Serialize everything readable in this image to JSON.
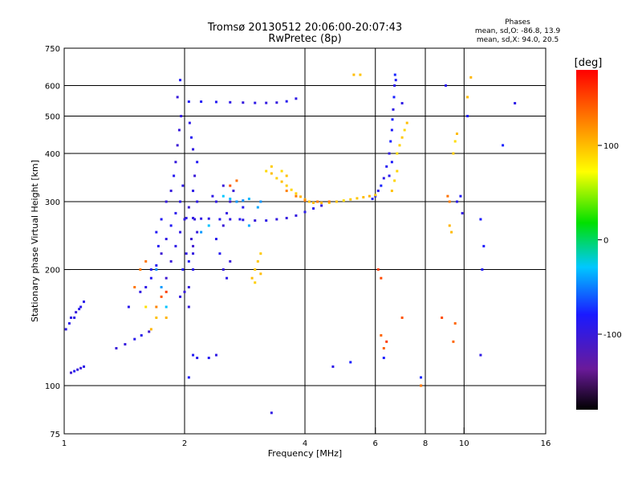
{
  "header": {
    "title_line1": "Tromsø 20130512 20:06:00-20:07:43",
    "title_line2": "RwPretec (8p)",
    "stats_title": "Phases",
    "stats_o": "mean, sd,O: -86.8, 13.9",
    "stats_x": "mean, sd,X: 94.0, 20.5"
  },
  "chart_data": {
    "type": "scatter",
    "xlabel": "Frequency [MHz]",
    "ylabel": "Stationary phase Virtual Height [km]",
    "xscale": "log",
    "yscale": "log",
    "xlim": [
      1,
      16
    ],
    "ylim": [
      75,
      750
    ],
    "x_ticks": [
      {
        "value": 1,
        "label": "1"
      },
      {
        "value": 2,
        "label": "2"
      },
      {
        "value": 4,
        "label": "4"
      },
      {
        "value": 6,
        "label": "6"
      },
      {
        "value": 8,
        "label": "8"
      },
      {
        "value": 10,
        "label": "10"
      },
      {
        "value": 16,
        "label": "16"
      }
    ],
    "x_gridlines": [
      2,
      4,
      6,
      8,
      10
    ],
    "y_ticks": [
      {
        "value": 75,
        "label": "75"
      },
      {
        "value": 100,
        "label": "100"
      },
      {
        "value": 200,
        "label": "200"
      },
      {
        "value": 300,
        "label": "300"
      },
      {
        "value": 400,
        "label": "400"
      },
      {
        "value": 500,
        "label": "500"
      },
      {
        "value": 600,
        "label": "600"
      },
      {
        "value": 750,
        "label": "750"
      }
    ],
    "y_gridlines": [
      100,
      200,
      300,
      400,
      500,
      600
    ],
    "colorbar": {
      "label": "[deg]",
      "range": [
        -180,
        180
      ],
      "ticks": [
        {
          "value": 100,
          "label": "100"
        },
        {
          "value": 0,
          "label": "0"
        },
        {
          "value": -100,
          "label": "-100"
        }
      ]
    },
    "point_groups": [
      {
        "phase": -95,
        "spread": 10,
        "points": [
          [
            1.04,
            108
          ],
          [
            1.06,
            109
          ],
          [
            1.08,
            110
          ],
          [
            1.1,
            111
          ],
          [
            1.12,
            112
          ],
          [
            1.04,
            150
          ],
          [
            1.07,
            155
          ],
          [
            1.1,
            160
          ],
          [
            1.12,
            165
          ],
          [
            1.01,
            140
          ],
          [
            1.03,
            145
          ],
          [
            1.06,
            150
          ],
          [
            1.09,
            158
          ]
        ]
      },
      {
        "phase": -95,
        "spread": 12,
        "points": [
          [
            1.35,
            125
          ],
          [
            1.42,
            128
          ],
          [
            1.5,
            132
          ],
          [
            1.56,
            135
          ],
          [
            1.63,
            138
          ],
          [
            1.45,
            160
          ],
          [
            1.55,
            175
          ],
          [
            1.65,
            190
          ],
          [
            1.7,
            205
          ],
          [
            1.75,
            220
          ],
          [
            1.8,
            240
          ],
          [
            1.85,
            260
          ],
          [
            1.9,
            280
          ],
          [
            1.95,
            300
          ],
          [
            1.98,
            330
          ],
          [
            1.7,
            250
          ],
          [
            1.75,
            270
          ],
          [
            1.8,
            300
          ],
          [
            1.85,
            320
          ],
          [
            1.88,
            350
          ],
          [
            1.9,
            380
          ],
          [
            1.92,
            420
          ],
          [
            1.94,
            460
          ],
          [
            1.96,
            500
          ],
          [
            1.92,
            560
          ],
          [
            1.95,
            620
          ],
          [
            1.6,
            180
          ],
          [
            1.65,
            200
          ],
          [
            1.72,
            230
          ],
          [
            1.8,
            190
          ],
          [
            1.85,
            210
          ],
          [
            1.9,
            230
          ],
          [
            1.95,
            250
          ],
          [
            2.0,
            270
          ],
          [
            2.05,
            290
          ],
          [
            2.05,
            210
          ],
          [
            2.1,
            230
          ],
          [
            2.15,
            250
          ],
          [
            2.05,
            180
          ],
          [
            2.1,
            200
          ],
          [
            1.98,
            200
          ],
          [
            2.02,
            220
          ],
          [
            2.08,
            240
          ],
          [
            1.95,
            170
          ],
          [
            2.0,
            175
          ],
          [
            2.05,
            160
          ],
          [
            2.1,
            220
          ],
          [
            2.12,
            270
          ],
          [
            2.15,
            300
          ],
          [
            2.1,
            320
          ],
          [
            2.12,
            350
          ],
          [
            2.15,
            380
          ],
          [
            2.1,
            410
          ],
          [
            2.08,
            440
          ],
          [
            2.06,
            480
          ]
        ]
      },
      {
        "phase": -95,
        "spread": 8,
        "points": [
          [
            2.02,
            272
          ],
          [
            2.1,
            272
          ],
          [
            2.2,
            271
          ],
          [
            2.3,
            271
          ],
          [
            2.45,
            270
          ],
          [
            2.6,
            270
          ],
          [
            2.8,
            269
          ],
          [
            3.0,
            268
          ],
          [
            3.2,
            268
          ],
          [
            3.4,
            270
          ],
          [
            3.6,
            272
          ],
          [
            3.8,
            276
          ],
          [
            4.0,
            282
          ],
          [
            4.2,
            288
          ],
          [
            4.4,
            293
          ],
          [
            2.4,
            240
          ],
          [
            2.5,
            260
          ],
          [
            2.55,
            280
          ],
          [
            2.6,
            300
          ],
          [
            2.65,
            320
          ],
          [
            2.45,
            220
          ],
          [
            2.5,
            200
          ],
          [
            2.55,
            190
          ],
          [
            2.6,
            210
          ],
          [
            2.4,
            300
          ],
          [
            2.35,
            310
          ],
          [
            2.5,
            330
          ],
          [
            2.7,
            300
          ],
          [
            2.8,
            290
          ],
          [
            2.75,
            270
          ]
        ]
      },
      {
        "phase": -90,
        "spread": 8,
        "points": [
          [
            2.05,
            545
          ],
          [
            2.2,
            545
          ],
          [
            2.4,
            544
          ],
          [
            2.6,
            543
          ],
          [
            2.8,
            542
          ],
          [
            3.0,
            541
          ],
          [
            3.2,
            541
          ],
          [
            3.4,
            542
          ],
          [
            3.6,
            546
          ],
          [
            3.8,
            555
          ],
          [
            2.1,
            120
          ],
          [
            2.15,
            118
          ],
          [
            2.3,
            118
          ],
          [
            2.4,
            120
          ],
          [
            2.05,
            105
          ],
          [
            3.3,
            85
          ],
          [
            4.7,
            112
          ]
        ]
      },
      {
        "phase": -85,
        "spread": 10,
        "points": [
          [
            6.2,
            330
          ],
          [
            6.3,
            345
          ],
          [
            6.4,
            370
          ],
          [
            6.5,
            400
          ],
          [
            6.55,
            430
          ],
          [
            6.6,
            460
          ],
          [
            6.62,
            490
          ],
          [
            6.65,
            520
          ],
          [
            6.68,
            560
          ],
          [
            6.7,
            600
          ],
          [
            6.72,
            640
          ],
          [
            6.75,
            620
          ],
          [
            6.6,
            380
          ],
          [
            6.5,
            350
          ],
          [
            9.0,
            600
          ],
          [
            9.6,
            300
          ],
          [
            9.8,
            310
          ],
          [
            9.9,
            280
          ],
          [
            10.2,
            500
          ],
          [
            11.0,
            270
          ],
          [
            11.2,
            230
          ],
          [
            11.1,
            200
          ],
          [
            11.0,
            120
          ],
          [
            13.4,
            540
          ],
          [
            12.5,
            420
          ],
          [
            6.1,
            320
          ],
          [
            6.0,
            310
          ],
          [
            5.9,
            305
          ],
          [
            7.0,
            540
          ],
          [
            5.2,
            115
          ],
          [
            6.3,
            118
          ],
          [
            7.8,
            105
          ]
        ]
      },
      {
        "phase": -40,
        "spread": 12,
        "points": [
          [
            2.5,
            310
          ],
          [
            2.6,
            305
          ],
          [
            2.7,
            300
          ],
          [
            2.8,
            302
          ],
          [
            2.9,
            305
          ],
          [
            2.3,
            260
          ],
          [
            2.2,
            250
          ],
          [
            1.7,
            200
          ],
          [
            1.75,
            180
          ],
          [
            1.8,
            160
          ],
          [
            3.05,
            290
          ],
          [
            3.1,
            300
          ],
          [
            2.9,
            260
          ]
        ]
      },
      {
        "phase": 95,
        "spread": 10,
        "points": [
          [
            3.3,
            355
          ],
          [
            3.4,
            345
          ],
          [
            3.5,
            338
          ],
          [
            3.6,
            330
          ],
          [
            3.7,
            322
          ],
          [
            3.8,
            315
          ],
          [
            3.9,
            309
          ],
          [
            4.0,
            304
          ],
          [
            4.1,
            300
          ],
          [
            4.2,
            298
          ],
          [
            4.4,
            298
          ],
          [
            4.6,
            298
          ],
          [
            4.8,
            300
          ],
          [
            5.0,
            302
          ],
          [
            5.2,
            304
          ],
          [
            5.4,
            306
          ],
          [
            5.6,
            308
          ],
          [
            5.8,
            310
          ],
          [
            6.0,
            312
          ],
          [
            3.2,
            360
          ],
          [
            3.3,
            370
          ],
          [
            3.5,
            360
          ],
          [
            3.6,
            350
          ],
          [
            3.0,
            200
          ],
          [
            3.05,
            210
          ],
          [
            3.1,
            220
          ],
          [
            2.95,
            190
          ],
          [
            3.0,
            185
          ],
          [
            3.1,
            195
          ],
          [
            6.8,
            400
          ],
          [
            6.9,
            420
          ],
          [
            7.0,
            440
          ],
          [
            7.1,
            460
          ],
          [
            7.2,
            480
          ],
          [
            6.8,
            360
          ],
          [
            6.7,
            340
          ],
          [
            6.6,
            320
          ],
          [
            9.4,
            400
          ],
          [
            9.5,
            430
          ],
          [
            9.6,
            450
          ],
          [
            9.3,
            250
          ],
          [
            9.2,
            260
          ],
          [
            1.65,
            140
          ],
          [
            1.7,
            150
          ],
          [
            1.8,
            150
          ],
          [
            1.6,
            160
          ],
          [
            5.3,
            640
          ],
          [
            5.5,
            640
          ],
          [
            10.2,
            560
          ],
          [
            10.4,
            630
          ]
        ]
      },
      {
        "phase": 140,
        "spread": 15,
        "points": [
          [
            3.6,
            320
          ],
          [
            3.8,
            310
          ],
          [
            4.0,
            302
          ],
          [
            4.3,
            300
          ],
          [
            4.6,
            300
          ],
          [
            1.7,
            160
          ],
          [
            1.75,
            170
          ],
          [
            1.8,
            175
          ],
          [
            1.5,
            180
          ],
          [
            1.55,
            200
          ],
          [
            1.6,
            210
          ],
          [
            2.6,
            330
          ],
          [
            2.7,
            340
          ],
          [
            6.3,
            125
          ],
          [
            6.4,
            130
          ],
          [
            6.2,
            135
          ],
          [
            7.0,
            150
          ],
          [
            8.8,
            150
          ],
          [
            9.5,
            145
          ],
          [
            9.4,
            130
          ],
          [
            9.2,
            300
          ],
          [
            9.1,
            310
          ],
          [
            6.2,
            190
          ],
          [
            6.1,
            200
          ],
          [
            7.8,
            100
          ]
        ]
      }
    ]
  }
}
